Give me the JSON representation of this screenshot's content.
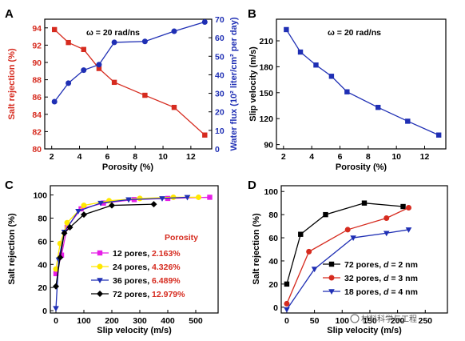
{
  "chart_data": [
    {
      "id": "A",
      "type": "line",
      "panel_label": "A",
      "annotation": "ω = 20 rad/ns",
      "xlabel": "Porosity (%)",
      "ylabel": "Salt rejection (%)",
      "ylabel_right": "Water flux (10² liter/cm² per day)",
      "xlim": [
        1.5,
        13.5
      ],
      "ylim": [
        80,
        95
      ],
      "ylim_right": [
        0,
        70
      ],
      "xticks": [
        "2",
        "4",
        "6",
        "8",
        "10",
        "12"
      ],
      "yticks": [
        "80",
        "82",
        "84",
        "86",
        "88",
        "90",
        "92",
        "94"
      ],
      "yticks_right": [
        "0",
        "10",
        "20",
        "30",
        "40",
        "50",
        "60",
        "70"
      ],
      "series": [
        {
          "axis": "left",
          "color": "#d62b1f",
          "marker": "square",
          "x": [
            2.2,
            3.2,
            4.3,
            5.4,
            6.5,
            8.7,
            10.8,
            13.0
          ],
          "values": [
            93.8,
            92.3,
            91.5,
            89.3,
            87.7,
            86.2,
            84.8,
            81.6
          ]
        },
        {
          "axis": "right",
          "color": "#1f2fb4",
          "marker": "circle",
          "x": [
            2.2,
            3.2,
            4.3,
            5.4,
            6.5,
            8.7,
            10.8,
            13.0
          ],
          "values": [
            25.5,
            35.5,
            42.5,
            45.5,
            57.5,
            58.0,
            63.5,
            68.5
          ]
        }
      ]
    },
    {
      "id": "B",
      "type": "line",
      "panel_label": "B",
      "annotation": "ω = 20 rad/ns",
      "xlabel": "Porosity (%)",
      "ylabel": "Slip velocity (m/s)",
      "xlim": [
        1.5,
        13.5
      ],
      "ylim": [
        85,
        235
      ],
      "xticks": [
        "2",
        "4",
        "6",
        "8",
        "10",
        "12"
      ],
      "yticks": [
        "90",
        "120",
        "150",
        "180",
        "210"
      ],
      "series": [
        {
          "color": "#1f2fb4",
          "marker": "square",
          "x": [
            2.2,
            3.2,
            4.3,
            5.4,
            6.5,
            8.7,
            10.8,
            13.0
          ],
          "values": [
            223,
            197,
            182,
            169,
            151,
            133,
            117,
            101
          ]
        }
      ]
    },
    {
      "id": "C",
      "type": "line",
      "panel_label": "C",
      "xlabel": "Slip velocity (m/s)",
      "ylabel": "Salt rejection (%)",
      "xlim": [
        -20,
        580
      ],
      "ylim": [
        -2,
        108
      ],
      "xticks": [
        "0",
        "100",
        "200",
        "300",
        "400",
        "500"
      ],
      "yticks": [
        "0",
        "20",
        "40",
        "60",
        "80",
        "100"
      ],
      "legend_title": "Porosity",
      "legend_position": "lower-right",
      "series": [
        {
          "name": "12 pores,",
          "porosity": "2.163%",
          "color": "#e61ee6",
          "marker": "square",
          "x": [
            0,
            20,
            40,
            90,
            170,
            280,
            400,
            550
          ],
          "values": [
            32,
            48,
            72,
            88,
            93,
            96,
            97,
            98
          ]
        },
        {
          "name": "24 pores,",
          "porosity": "4.326%",
          "color": "#ffe800",
          "marker": "circle",
          "x": [
            0,
            15,
            40,
            100,
            190,
            300,
            420,
            510
          ],
          "values": [
            36,
            58,
            76,
            91,
            95,
            97,
            98,
            98
          ]
        },
        {
          "name": "36 pores,",
          "porosity": "6.489%",
          "color": "#1f2fb4",
          "marker": "triangle-down",
          "x": [
            0,
            10,
            30,
            80,
            160,
            260,
            380,
            470
          ],
          "values": [
            2,
            44,
            68,
            86,
            93,
            96,
            97,
            98
          ]
        },
        {
          "name": "72 pores,",
          "porosity": "12.979%",
          "color": "#000000",
          "marker": "diamond",
          "x": [
            0,
            15,
            30,
            50,
            100,
            200,
            350
          ],
          "values": [
            21,
            46,
            67,
            72,
            83,
            91,
            92
          ]
        }
      ]
    },
    {
      "id": "D",
      "type": "line",
      "panel_label": "D",
      "xlabel": "Slip velocity (m/s)",
      "ylabel": "Salt rejection (%)",
      "xlim": [
        -10,
        290
      ],
      "ylim": [
        -5,
        105
      ],
      "xticks": [
        "0",
        "50",
        "100",
        "150",
        "200",
        "250"
      ],
      "yticks": [
        "0",
        "20",
        "40",
        "60",
        "80",
        "100"
      ],
      "legend_position": "lower-right",
      "series": [
        {
          "name": "72 pores, ",
          "diam": "d",
          "diam_value": " = 2 nm",
          "color": "#000000",
          "marker": "square",
          "x": [
            0,
            25,
            70,
            140,
            210
          ],
          "values": [
            20,
            63,
            80,
            90,
            87
          ]
        },
        {
          "name": "32 pores, ",
          "diam": "d",
          "diam_value": " = 3 nm",
          "color": "#d62b1f",
          "marker": "circle",
          "x": [
            0,
            40,
            110,
            180,
            220
          ],
          "values": [
            3,
            48,
            67,
            77,
            86
          ]
        },
        {
          "name": "18 pores, ",
          "diam": "d",
          "diam_value": " = 4 nm",
          "color": "#1f2fb4",
          "marker": "triangle-down",
          "x": [
            0,
            50,
            120,
            180,
            220
          ],
          "values": [
            -2,
            33,
            60,
            64,
            67
          ]
        }
      ]
    }
  ],
  "watermark": "材料科学与工程"
}
